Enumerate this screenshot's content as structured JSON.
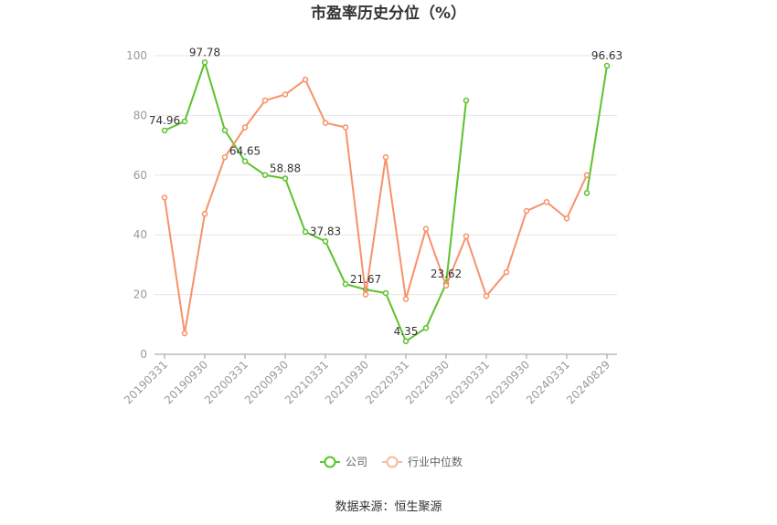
{
  "chart_data": {
    "type": "line",
    "title": "市盈率历史分位（%）",
    "source": "数据来源：恒生聚源",
    "ylim": [
      0,
      100
    ],
    "yticks": [
      "0",
      "20",
      "40",
      "60",
      "80",
      "100"
    ],
    "grid": true,
    "legend_position": "bottom-center",
    "x": [
      "20190331",
      "20190630",
      "20190930",
      "20191231",
      "20200331",
      "20200630",
      "20200930",
      "20201231",
      "20210331",
      "20210630",
      "20210930",
      "20211231",
      "20220331",
      "20220630",
      "20220930",
      "20221231",
      "20230331",
      "20230630",
      "20230930",
      "20231231",
      "20240331",
      "20240630",
      "20240829"
    ],
    "xticks": [
      "20190331",
      "20190930",
      "20200331",
      "20200930",
      "20210331",
      "20210930",
      "20220331",
      "20220930",
      "20230331",
      "20230930",
      "20240331",
      "20240829"
    ],
    "series": [
      {
        "name": "公司",
        "color": "#5cc22d",
        "values": [
          74.96,
          78.0,
          97.78,
          75.0,
          64.65,
          60.0,
          58.88,
          41.0,
          37.83,
          23.5,
          21.67,
          20.5,
          4.35,
          8.8,
          23.62,
          85.0,
          null,
          null,
          null,
          null,
          null,
          54.0,
          96.63
        ],
        "labels": [
          "74.96",
          null,
          "97.78",
          null,
          "64.65",
          null,
          "58.88",
          null,
          "37.83",
          null,
          "21.67",
          null,
          "4.35",
          null,
          "23.62",
          null,
          null,
          null,
          null,
          null,
          null,
          null,
          "96.63"
        ]
      },
      {
        "name": "行业中位数",
        "color": "#f7926a",
        "values": [
          52.5,
          7.0,
          47.0,
          66.0,
          76.0,
          85.0,
          87.0,
          92.0,
          77.5,
          76.0,
          20.0,
          66.0,
          18.5,
          42.0,
          23.0,
          39.5,
          19.5,
          27.5,
          48.0,
          51.0,
          45.5,
          60.0,
          null
        ]
      }
    ]
  }
}
